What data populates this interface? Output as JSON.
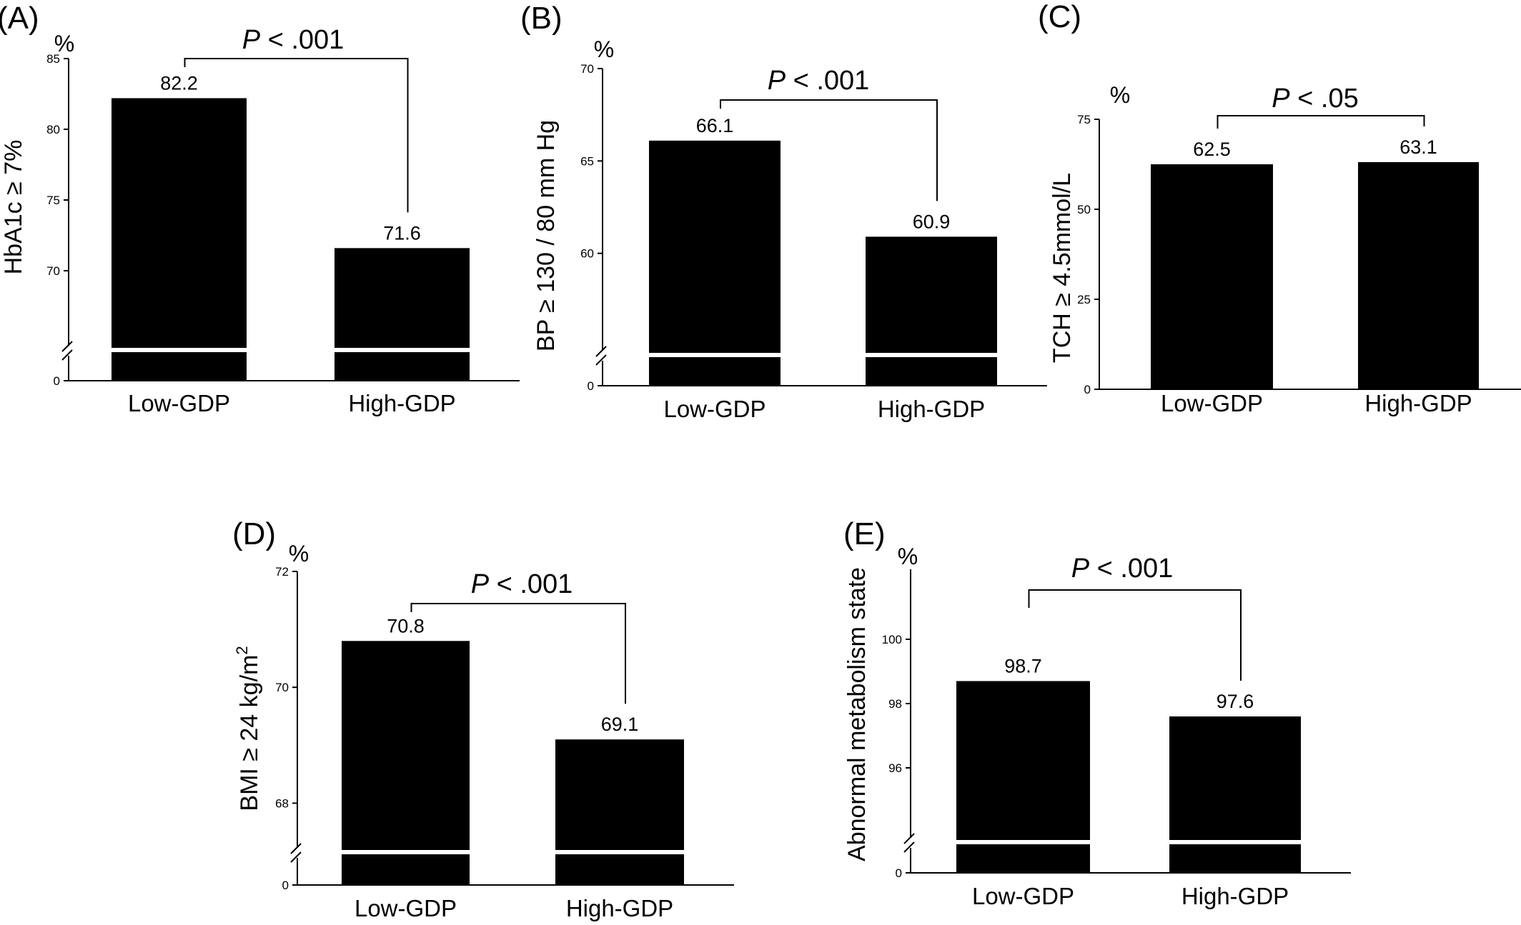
{
  "chart_data": [
    {
      "panel": "(A)",
      "type": "bar",
      "categories": [
        "Low-GDP",
        "High-GDP"
      ],
      "values": [
        82.2,
        71.6
      ],
      "value_labels": [
        "82.2",
        "71.6"
      ],
      "ylabel": "HbA1c ≥ 7%",
      "unit": "%",
      "yticks": [
        "0",
        "70",
        "75",
        "80",
        "85"
      ],
      "ylim": [
        65,
        85
      ],
      "axis_break": true,
      "p_value": {
        "prefix": "P",
        "text": " < .001"
      },
      "grid": false
    },
    {
      "panel": "(B)",
      "type": "bar",
      "categories": [
        "Low-GDP",
        "High-GDP"
      ],
      "values": [
        66.1,
        60.9
      ],
      "value_labels": [
        "66.1",
        "60.9"
      ],
      "ylabel": "BP ≥ 130 / 80 mm Hg",
      "unit": "%",
      "yticks": [
        "0",
        "60",
        "65",
        "70"
      ],
      "ylim": [
        55,
        70
      ],
      "axis_break": true,
      "p_value": {
        "prefix": "P",
        "text": " < .001"
      },
      "grid": false
    },
    {
      "panel": "(C)",
      "type": "bar",
      "categories": [
        "Low-GDP",
        "High-GDP"
      ],
      "values": [
        62.5,
        63.1
      ],
      "value_labels": [
        "62.5",
        "63.1"
      ],
      "ylabel": "TCH ≥ 4.5mmol/L",
      "unit": "%",
      "yticks": [
        "0",
        "25",
        "50",
        "75"
      ],
      "ylim": [
        0,
        75
      ],
      "axis_break": false,
      "p_value": {
        "prefix": "P",
        "text": " < .05"
      },
      "grid": false
    },
    {
      "panel": "(D)",
      "type": "bar",
      "categories": [
        "Low-GDP",
        "High-GDP"
      ],
      "values": [
        70.8,
        69.1
      ],
      "value_labels": [
        "70.8",
        "69.1"
      ],
      "ylabel": "BMI ≥ 24 kg/m",
      "ylabel_sup": "2",
      "unit": "%",
      "yticks": [
        "0",
        "68",
        "70",
        "72"
      ],
      "ylim": [
        67.5,
        72
      ],
      "axis_break": true,
      "p_value": {
        "prefix": "P",
        "text": " < .001"
      },
      "grid": false
    },
    {
      "panel": "(E)",
      "type": "bar",
      "categories": [
        "Low-GDP",
        "High-GDP"
      ],
      "values": [
        98.7,
        97.6
      ],
      "value_labels": [
        "98.7",
        "97.6"
      ],
      "ylabel": "Abnormal metabolism state",
      "unit": "%",
      "yticks": [
        "0",
        "96",
        "98",
        "100"
      ],
      "ylim": [
        94,
        101
      ],
      "axis_break": true,
      "p_value": {
        "prefix": "P",
        "text": " < .001"
      },
      "grid": false
    }
  ]
}
